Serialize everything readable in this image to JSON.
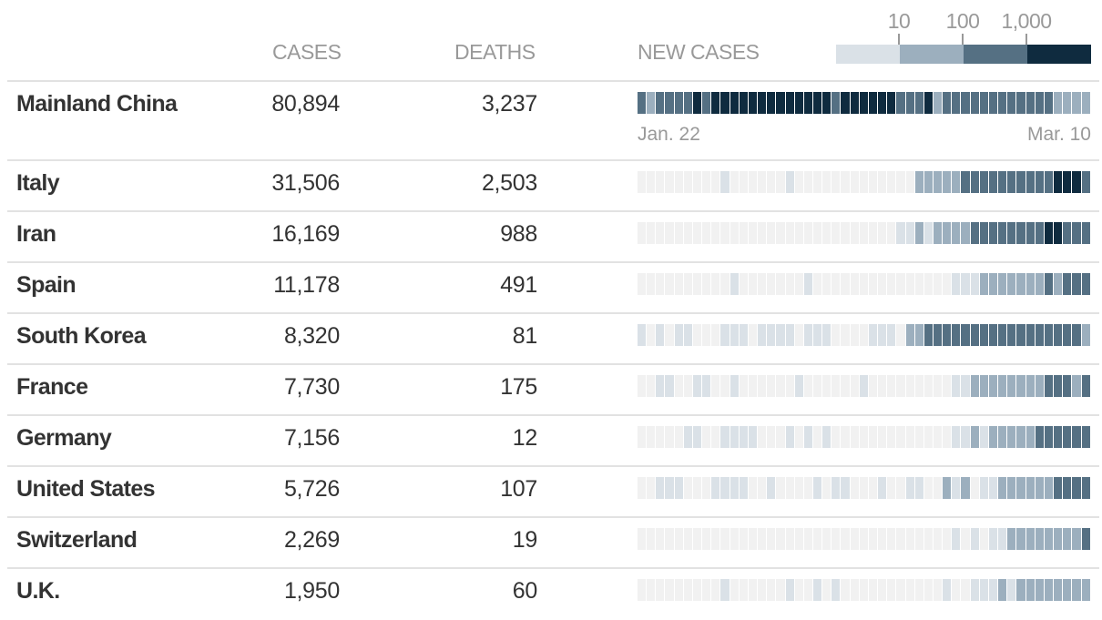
{
  "headers": {
    "cases": "CASES",
    "deaths": "DEATHS",
    "new_cases": "NEW CASES"
  },
  "legend": {
    "labels": [
      "10",
      "100",
      "1,000"
    ]
  },
  "colors": {
    "level0": "#f1f1f1",
    "level1": "#dae1e7",
    "level2": "#9cafbe",
    "level3": "#557083",
    "level4": "#0f2b3f"
  },
  "dates": {
    "start": "Jan. 22",
    "end": "Mar. 10"
  },
  "rows": [
    {
      "name": "Mainland China",
      "cases": "80,894",
      "deaths": "3,237"
    },
    {
      "name": "Italy",
      "cases": "31,506",
      "deaths": "2,503"
    },
    {
      "name": "Iran",
      "cases": "16,169",
      "deaths": "988"
    },
    {
      "name": "Spain",
      "cases": "11,178",
      "deaths": "491"
    },
    {
      "name": "South Korea",
      "cases": "8,320",
      "deaths": "81"
    },
    {
      "name": "France",
      "cases": "7,730",
      "deaths": "175"
    },
    {
      "name": "Germany",
      "cases": "7,156",
      "deaths": "12"
    },
    {
      "name": "United States",
      "cases": "5,726",
      "deaths": "107"
    },
    {
      "name": "Switzerland",
      "cases": "2,269",
      "deaths": "19"
    },
    {
      "name": "U.K.",
      "cases": "1,950",
      "deaths": "60"
    }
  ],
  "chart_data": {
    "type": "heatmap",
    "title": "NEW CASES",
    "x_range": [
      "Jan. 22",
      "Mar. 10"
    ],
    "level_scale": {
      "0": "none",
      "1": "1-9",
      "2": "10-99",
      "3": "100-999",
      "4": "1,000+"
    },
    "series": [
      {
        "name": "Mainland China",
        "levels": [
          3,
          2,
          3,
          3,
          3,
          3,
          4,
          3,
          4,
          4,
          4,
          4,
          4,
          4,
          4,
          4,
          4,
          4,
          4,
          4,
          4,
          3,
          4,
          4,
          4,
          4,
          4,
          4,
          3,
          3,
          3,
          4,
          2,
          3,
          3,
          3,
          3,
          3,
          3,
          3,
          3,
          3,
          3,
          3,
          3,
          2,
          2,
          2,
          2
        ]
      },
      {
        "name": "Italy",
        "levels": [
          0,
          0,
          0,
          0,
          0,
          0,
          0,
          0,
          0,
          1,
          0,
          0,
          0,
          0,
          0,
          0,
          1,
          0,
          0,
          0,
          0,
          0,
          0,
          0,
          0,
          0,
          0,
          0,
          0,
          0,
          2,
          2,
          2,
          2,
          2,
          3,
          3,
          3,
          3,
          3,
          3,
          3,
          3,
          3,
          3,
          4,
          4,
          4,
          3
        ]
      },
      {
        "name": "Iran",
        "levels": [
          0,
          0,
          0,
          0,
          0,
          0,
          0,
          0,
          0,
          0,
          0,
          0,
          0,
          0,
          0,
          0,
          0,
          0,
          0,
          0,
          0,
          0,
          0,
          0,
          0,
          0,
          0,
          0,
          1,
          1,
          2,
          1,
          2,
          2,
          2,
          2,
          3,
          3,
          3,
          3,
          3,
          3,
          3,
          3,
          4,
          4,
          3,
          3,
          3
        ]
      },
      {
        "name": "Spain",
        "levels": [
          0,
          0,
          0,
          0,
          0,
          0,
          0,
          0,
          0,
          0,
          1,
          0,
          0,
          0,
          0,
          0,
          0,
          0,
          1,
          0,
          0,
          0,
          0,
          0,
          0,
          0,
          0,
          0,
          0,
          0,
          0,
          0,
          0,
          0,
          1,
          1,
          1,
          2,
          2,
          2,
          2,
          2,
          2,
          2,
          3,
          2,
          3,
          3,
          3
        ]
      },
      {
        "name": "South Korea",
        "levels": [
          1,
          0,
          1,
          0,
          1,
          1,
          0,
          0,
          0,
          1,
          1,
          1,
          0,
          1,
          1,
          1,
          1,
          0,
          1,
          1,
          1,
          0,
          0,
          0,
          0,
          1,
          1,
          1,
          0,
          2,
          2,
          3,
          3,
          3,
          3,
          3,
          3,
          3,
          3,
          3,
          3,
          3,
          3,
          3,
          3,
          3,
          3,
          3,
          2
        ]
      },
      {
        "name": "France",
        "levels": [
          0,
          0,
          1,
          1,
          0,
          0,
          1,
          1,
          0,
          0,
          1,
          0,
          0,
          0,
          0,
          0,
          0,
          1,
          0,
          0,
          0,
          0,
          0,
          0,
          1,
          0,
          0,
          0,
          0,
          0,
          0,
          0,
          0,
          0,
          1,
          1,
          2,
          2,
          2,
          2,
          2,
          2,
          2,
          2,
          3,
          3,
          3,
          2,
          3
        ]
      },
      {
        "name": "Germany",
        "levels": [
          0,
          0,
          0,
          0,
          0,
          1,
          1,
          0,
          0,
          1,
          1,
          1,
          1,
          0,
          0,
          0,
          1,
          0,
          1,
          0,
          1,
          0,
          0,
          0,
          0,
          0,
          0,
          0,
          0,
          0,
          0,
          0,
          0,
          0,
          1,
          1,
          2,
          1,
          2,
          2,
          2,
          2,
          2,
          3,
          3,
          3,
          3,
          3,
          3
        ]
      },
      {
        "name": "United States",
        "levels": [
          0,
          0,
          1,
          1,
          1,
          0,
          0,
          0,
          1,
          1,
          1,
          1,
          0,
          0,
          1,
          0,
          0,
          0,
          0,
          1,
          0,
          1,
          1,
          0,
          0,
          0,
          1,
          0,
          0,
          1,
          1,
          0,
          0,
          2,
          1,
          2,
          0,
          1,
          1,
          2,
          2,
          2,
          2,
          2,
          2,
          3,
          3,
          3,
          3
        ]
      },
      {
        "name": "Switzerland",
        "levels": [
          0,
          0,
          0,
          0,
          0,
          0,
          0,
          0,
          0,
          0,
          0,
          0,
          0,
          0,
          0,
          0,
          0,
          0,
          0,
          0,
          0,
          0,
          0,
          0,
          0,
          0,
          0,
          0,
          0,
          0,
          0,
          0,
          0,
          0,
          1,
          0,
          1,
          0,
          1,
          1,
          2,
          2,
          2,
          2,
          2,
          2,
          2,
          2,
          3
        ]
      },
      {
        "name": "U.K.",
        "levels": [
          0,
          0,
          0,
          0,
          0,
          0,
          0,
          0,
          0,
          1,
          0,
          0,
          0,
          0,
          0,
          0,
          1,
          0,
          0,
          1,
          0,
          1,
          0,
          0,
          0,
          0,
          0,
          0,
          0,
          0,
          0,
          0,
          0,
          1,
          0,
          0,
          1,
          1,
          1,
          2,
          1,
          2,
          2,
          2,
          2,
          2,
          2,
          2,
          2
        ]
      }
    ]
  }
}
